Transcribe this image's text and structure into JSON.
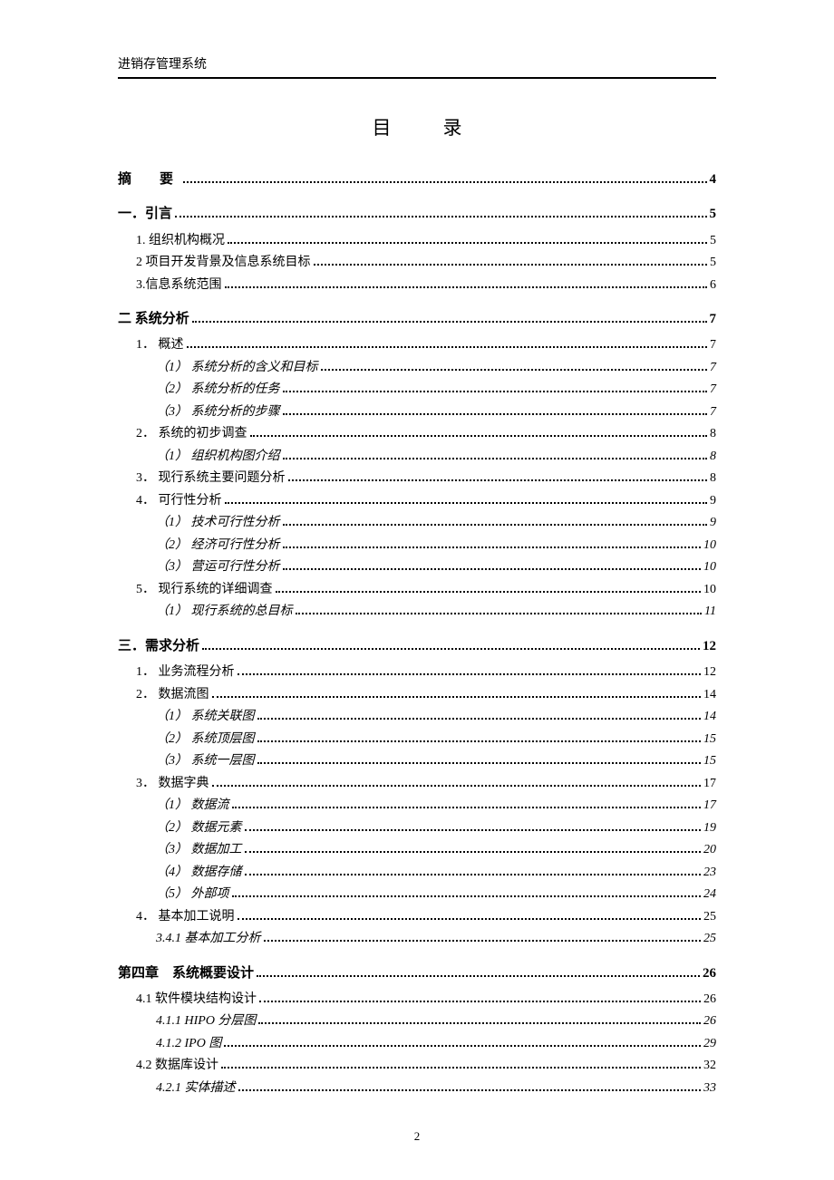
{
  "header": {
    "title": "进销存管理系统"
  },
  "toc_heading": "目　录",
  "page_number": "2",
  "entries": [
    {
      "level": 0,
      "label": "摘　要",
      "page": "4",
      "spaced": true
    },
    {
      "level": 0,
      "label": "一．引言",
      "page": "5"
    },
    {
      "level": 1,
      "label": "1. 组织机构概况",
      "page": "5"
    },
    {
      "level": 1,
      "label": "2 项目开发背景及信息系统目标",
      "page": "5"
    },
    {
      "level": 1,
      "label": "3.信息系统范围",
      "page": "6"
    },
    {
      "level": 0,
      "label": "二 系统分析",
      "page": "7"
    },
    {
      "level": 1,
      "label": "1． 概述",
      "page": "7"
    },
    {
      "level": 2,
      "label": "（1） 系统分析的含义和目标",
      "page": "7"
    },
    {
      "level": 2,
      "label": "（2） 系统分析的任务",
      "page": "7"
    },
    {
      "level": 2,
      "label": "（3） 系统分析的步骤",
      "page": "7"
    },
    {
      "level": 1,
      "label": "2． 系统的初步调查",
      "page": "8"
    },
    {
      "level": 2,
      "label": "（1） 组织机构图介绍",
      "page": "8"
    },
    {
      "level": 1,
      "label": "3． 现行系统主要问题分析",
      "page": "8"
    },
    {
      "level": 1,
      "label": "4． 可行性分析",
      "page": "9"
    },
    {
      "level": 2,
      "label": "（1） 技术可行性分析",
      "page": "9"
    },
    {
      "level": 2,
      "label": "（2） 经济可行性分析",
      "page": "10"
    },
    {
      "level": 2,
      "label": "（3） 营运可行性分析",
      "page": "10"
    },
    {
      "level": 1,
      "label": "5． 现行系统的详细调查",
      "page": "10"
    },
    {
      "level": 2,
      "label": "（1） 现行系统的总目标",
      "page": "11"
    },
    {
      "level": 0,
      "label": "三．需求分析",
      "page": "12"
    },
    {
      "level": 1,
      "label": "1． 业务流程分析",
      "page": "12"
    },
    {
      "level": 1,
      "label": "2． 数据流图",
      "page": "14"
    },
    {
      "level": 2,
      "label": "（1） 系统关联图",
      "page": "14"
    },
    {
      "level": 2,
      "label": "（2） 系统顶层图",
      "page": "15"
    },
    {
      "level": 2,
      "label": "（3） 系统一层图",
      "page": "15"
    },
    {
      "level": 1,
      "label": "3． 数据字典",
      "page": "17"
    },
    {
      "level": 2,
      "label": "（1） 数据流",
      "page": "17"
    },
    {
      "level": 2,
      "label": "（2） 数据元素",
      "page": "19"
    },
    {
      "level": 2,
      "label": "（3） 数据加工",
      "page": "20"
    },
    {
      "level": 2,
      "label": "（4） 数据存储",
      "page": "23"
    },
    {
      "level": 2,
      "label": "（5） 外部项",
      "page": "24"
    },
    {
      "level": 1,
      "label": "4． 基本加工说明",
      "page": "25"
    },
    {
      "level": 2,
      "label": "3.4.1 基本加工分析",
      "page": "25"
    },
    {
      "level": 0,
      "label": "第四章　系统概要设计",
      "page": "26"
    },
    {
      "level": 1,
      "label": "4.1 软件模块结构设计",
      "page": "26"
    },
    {
      "level": 2,
      "label": "4.1.1 HIPO 分层图",
      "page": "26"
    },
    {
      "level": 2,
      "label": "4.1.2 IPO 图",
      "page": "29"
    },
    {
      "level": 1,
      "label": "4.2 数据库设计",
      "page": "32"
    },
    {
      "level": 2,
      "label": "4.2.1 实体描述",
      "page": "33"
    }
  ]
}
